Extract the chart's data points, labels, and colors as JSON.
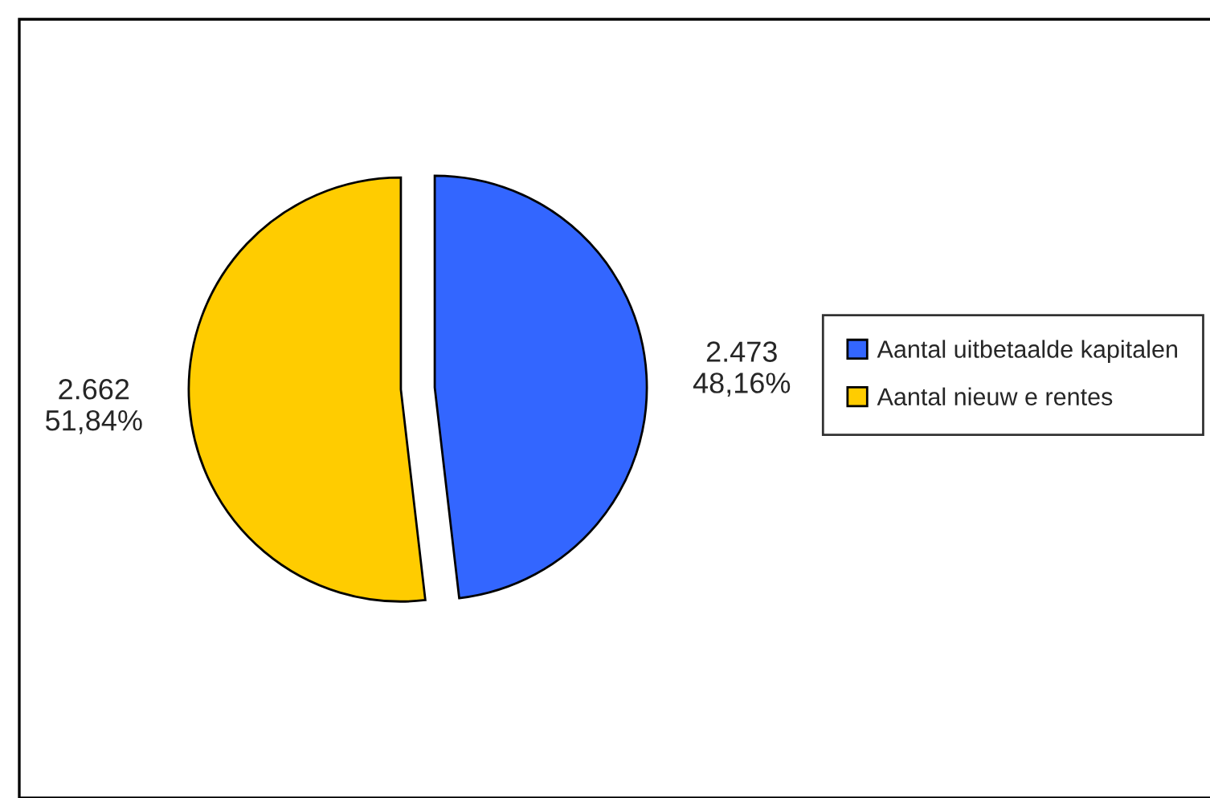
{
  "chart_data": {
    "type": "pie",
    "categories": [
      "Aantal uitbetaalde kapitalen",
      "Aantal nieuw e rentes"
    ],
    "values": [
      2473,
      2662
    ],
    "colors": [
      "#3366ff",
      "#ffcc00"
    ],
    "value_labels": [
      "2.473\n48,16%",
      "2.662\n51,84%"
    ],
    "legend": "right"
  }
}
